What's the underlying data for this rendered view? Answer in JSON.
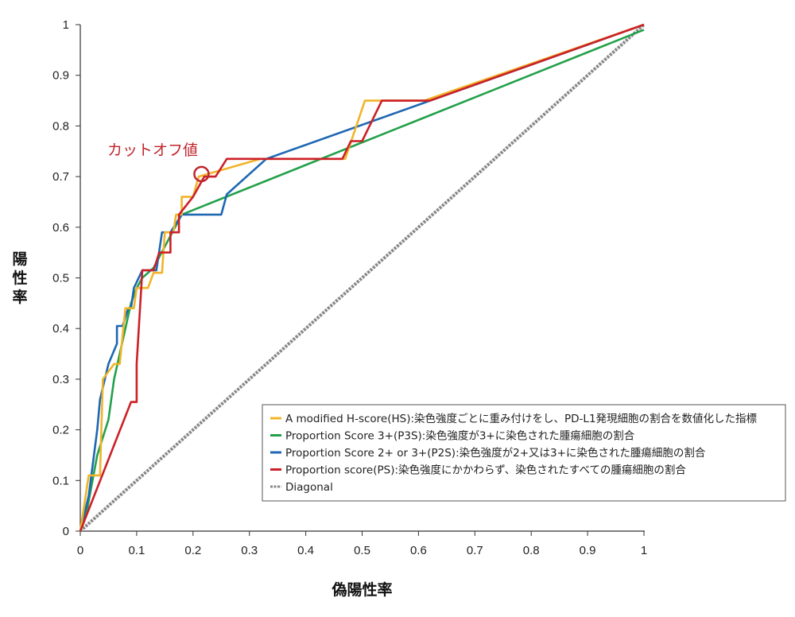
{
  "chart_data": {
    "type": "line",
    "title": "",
    "xlabel": "偽陽性率",
    "ylabel": "陽性率",
    "xlim": [
      0,
      1
    ],
    "ylim": [
      0,
      1
    ],
    "x_ticks": [
      "0",
      "0.1",
      "0.2",
      "0.3",
      "0.4",
      "0.5",
      "0.6",
      "0.7",
      "0.8",
      "0.9",
      "1"
    ],
    "y_ticks": [
      "0",
      "0.1",
      "0.2",
      "0.3",
      "0.4",
      "0.5",
      "0.6",
      "0.7",
      "0.8",
      "0.9",
      "1"
    ],
    "grid": false,
    "legend_position": "bottom-right",
    "annotation": {
      "text": "カットオフ値",
      "x": 0.215,
      "y": 0.705,
      "color": "#c0262d"
    },
    "series": [
      {
        "name": "A modified H-score(HS):染色強度ごとに重み付けをし、PD-L1発現細胞の割合を数値化した指標",
        "color": "#f0b429",
        "points": [
          [
            0,
            0
          ],
          [
            0.015,
            0.11
          ],
          [
            0.035,
            0.11
          ],
          [
            0.04,
            0.3
          ],
          [
            0.06,
            0.33
          ],
          [
            0.07,
            0.33
          ],
          [
            0.08,
            0.44
          ],
          [
            0.095,
            0.44
          ],
          [
            0.1,
            0.48
          ],
          [
            0.12,
            0.48
          ],
          [
            0.13,
            0.51
          ],
          [
            0.145,
            0.51
          ],
          [
            0.15,
            0.59
          ],
          [
            0.165,
            0.59
          ],
          [
            0.17,
            0.625
          ],
          [
            0.18,
            0.625
          ],
          [
            0.18,
            0.66
          ],
          [
            0.2,
            0.66
          ],
          [
            0.21,
            0.7
          ],
          [
            0.32,
            0.735
          ],
          [
            0.47,
            0.735
          ],
          [
            0.505,
            0.85
          ],
          [
            0.61,
            0.85
          ],
          [
            1,
            1
          ]
        ]
      },
      {
        "name": "Proportion Score 3+(P3S):染色強度が3+に染色された腫瘍細胞の割合",
        "color": "#23a04a",
        "points": [
          [
            0,
            0
          ],
          [
            0.01,
            0.03
          ],
          [
            0.03,
            0.15
          ],
          [
            0.05,
            0.22
          ],
          [
            0.06,
            0.3
          ],
          [
            0.08,
            0.4
          ],
          [
            0.09,
            0.45
          ],
          [
            0.1,
            0.48
          ],
          [
            0.11,
            0.5
          ],
          [
            0.13,
            0.52
          ],
          [
            0.18,
            0.625
          ],
          [
            1,
            0.99
          ]
        ]
      },
      {
        "name": "Proportion Score 2+ or 3+(P2S):染色強度が2+又は3+に染色された腫瘍細胞の割合",
        "color": "#1e67b3",
        "points": [
          [
            0,
            0
          ],
          [
            0.015,
            0.07
          ],
          [
            0.03,
            0.2
          ],
          [
            0.035,
            0.26
          ],
          [
            0.05,
            0.33
          ],
          [
            0.065,
            0.37
          ],
          [
            0.065,
            0.405
          ],
          [
            0.075,
            0.405
          ],
          [
            0.085,
            0.44
          ],
          [
            0.09,
            0.44
          ],
          [
            0.095,
            0.48
          ],
          [
            0.11,
            0.515
          ],
          [
            0.135,
            0.515
          ],
          [
            0.145,
            0.59
          ],
          [
            0.16,
            0.59
          ],
          [
            0.18,
            0.625
          ],
          [
            0.25,
            0.625
          ],
          [
            0.26,
            0.665
          ],
          [
            0.33,
            0.735
          ],
          [
            1,
            1
          ]
        ]
      },
      {
        "name": "Proportion score(PS):染色強度にかかわらず、染色されたすべての腫瘍細胞の割合",
        "color": "#cc2027",
        "points": [
          [
            0,
            0
          ],
          [
            0.09,
            0.255
          ],
          [
            0.1,
            0.255
          ],
          [
            0.1,
            0.33
          ],
          [
            0.11,
            0.515
          ],
          [
            0.13,
            0.515
          ],
          [
            0.14,
            0.55
          ],
          [
            0.16,
            0.55
          ],
          [
            0.16,
            0.59
          ],
          [
            0.175,
            0.59
          ],
          [
            0.175,
            0.625
          ],
          [
            0.2,
            0.66
          ],
          [
            0.22,
            0.7
          ],
          [
            0.24,
            0.7
          ],
          [
            0.26,
            0.735
          ],
          [
            0.465,
            0.735
          ],
          [
            0.48,
            0.77
          ],
          [
            0.5,
            0.77
          ],
          [
            0.535,
            0.85
          ],
          [
            0.62,
            0.85
          ],
          [
            1,
            1
          ]
        ]
      },
      {
        "name": "Diagonal",
        "color": "#888888",
        "dashed": true,
        "points": [
          [
            0,
            0
          ],
          [
            1,
            1
          ]
        ]
      }
    ]
  }
}
